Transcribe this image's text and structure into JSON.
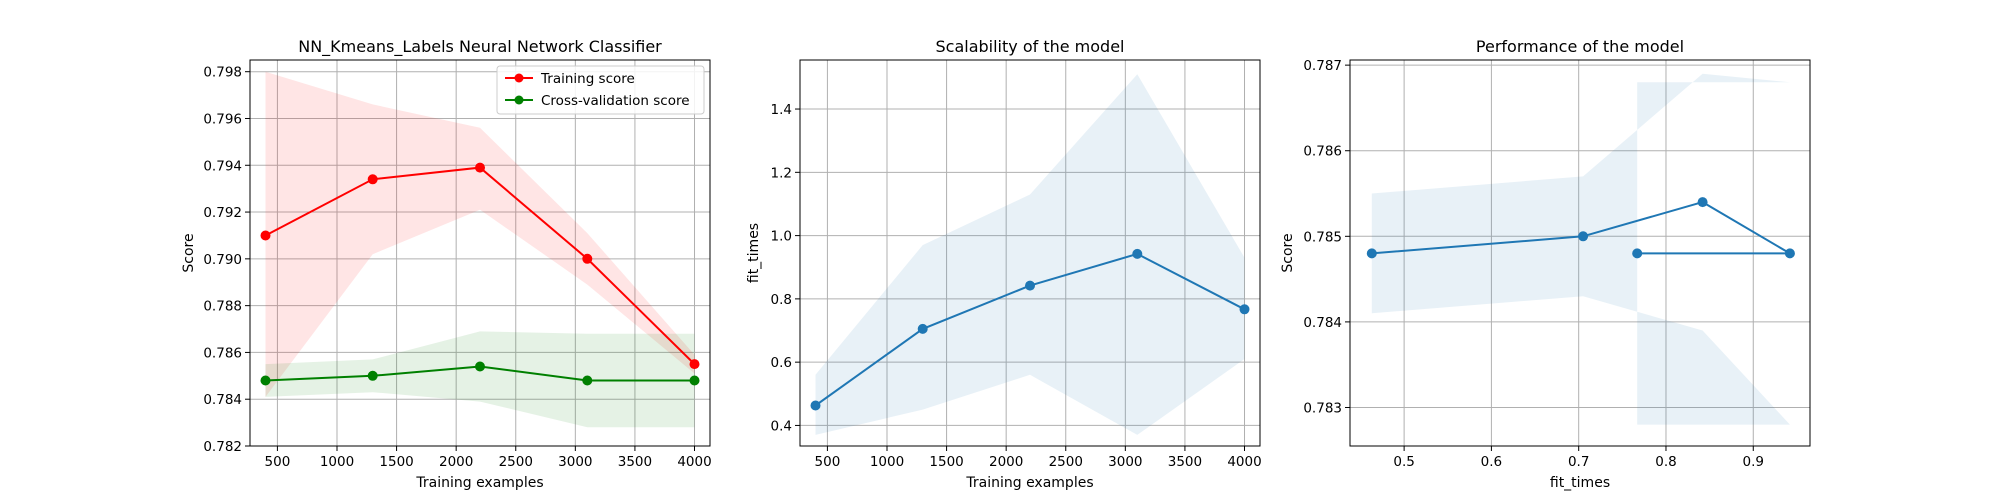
{
  "colors": {
    "train": "#ff0000",
    "cv": "#008000",
    "blue": "#1f77b4",
    "train_band": "#ff0000",
    "cv_band": "#008000",
    "blue_band": "#1f77b4"
  },
  "chart_data": [
    {
      "type": "line",
      "title": "NN_Kmeans_Labels Neural Network Classifier",
      "xlabel": "Training examples",
      "ylabel": "Score",
      "xlim": [
        270,
        4130
      ],
      "ylim": [
        0.782,
        0.7985
      ],
      "grid": true,
      "legend": "top-right",
      "xticks": [
        500,
        1000,
        1500,
        2000,
        2500,
        3000,
        3500,
        4000
      ],
      "xtick_labels": [
        "500",
        "1000",
        "1500",
        "2000",
        "2500",
        "3000",
        "3500",
        "4000"
      ],
      "yticks": [
        0.782,
        0.784,
        0.786,
        0.788,
        0.79,
        0.792,
        0.794,
        0.796,
        0.798
      ],
      "ytick_labels": [
        "0.782",
        "0.784",
        "0.786",
        "0.788",
        "0.790",
        "0.792",
        "0.794",
        "0.796",
        "0.798"
      ],
      "x": [
        400,
        1300,
        2200,
        3100,
        4000
      ],
      "series": [
        {
          "name": "Training score",
          "color_key": "train",
          "values": [
            0.791,
            0.7934,
            0.7939,
            0.79,
            0.7855
          ],
          "lower": [
            0.7841,
            0.7902,
            0.7921,
            0.7889,
            0.7851
          ],
          "upper": [
            0.798,
            0.7966,
            0.7956,
            0.7911,
            0.7859
          ]
        },
        {
          "name": "Cross-validation score",
          "color_key": "cv",
          "values": [
            0.7848,
            0.785,
            0.7854,
            0.7848,
            0.7848
          ],
          "lower": [
            0.7841,
            0.7843,
            0.7839,
            0.7828,
            0.7828
          ],
          "upper": [
            0.7855,
            0.7857,
            0.7869,
            0.7868,
            0.7868
          ]
        }
      ]
    },
    {
      "type": "line",
      "title": "Scalability of the model",
      "xlabel": "Training examples",
      "ylabel": "fit_times",
      "xlim": [
        270,
        4130
      ],
      "ylim": [
        0.335,
        1.555
      ],
      "grid": true,
      "xticks": [
        500,
        1000,
        1500,
        2000,
        2500,
        3000,
        3500,
        4000
      ],
      "xtick_labels": [
        "500",
        "1000",
        "1500",
        "2000",
        "2500",
        "3000",
        "3500",
        "4000"
      ],
      "yticks": [
        0.4,
        0.6,
        0.8,
        1.0,
        1.2,
        1.4
      ],
      "ytick_labels": [
        "0.4",
        "0.6",
        "0.8",
        "1.0",
        "1.2",
        "1.4"
      ],
      "x": [
        400,
        1300,
        2200,
        3100,
        4000
      ],
      "series": [
        {
          "name": "fit_times",
          "color_key": "blue",
          "values": [
            0.463,
            0.705,
            0.842,
            0.942,
            0.767
          ],
          "lower": [
            0.37,
            0.45,
            0.56,
            0.37,
            0.61
          ],
          "upper": [
            0.56,
            0.97,
            1.13,
            1.51,
            0.93
          ]
        }
      ]
    },
    {
      "type": "line",
      "title": "Performance of the model",
      "xlabel": "fit_times",
      "ylabel": "Score",
      "xlim": [
        0.438,
        0.965
      ],
      "ylim": [
        0.78255,
        0.78706
      ],
      "grid": true,
      "xticks": [
        0.5,
        0.6,
        0.7,
        0.8,
        0.9
      ],
      "xtick_labels": [
        "0.5",
        "0.6",
        "0.7",
        "0.8",
        "0.9"
      ],
      "yticks": [
        0.783,
        0.784,
        0.785,
        0.786,
        0.787
      ],
      "ytick_labels": [
        "0.783",
        "0.784",
        "0.785",
        "0.786",
        "0.787"
      ],
      "x": [
        0.463,
        0.705,
        0.842,
        0.942,
        0.767
      ],
      "series": [
        {
          "name": "Score",
          "color_key": "blue",
          "values": [
            0.7848,
            0.785,
            0.7854,
            0.7848,
            0.7848
          ],
          "lower": [
            0.7841,
            0.7843,
            0.7839,
            0.7828,
            0.7828
          ],
          "upper": [
            0.7855,
            0.7857,
            0.7869,
            0.7868,
            0.7868
          ]
        }
      ]
    }
  ]
}
